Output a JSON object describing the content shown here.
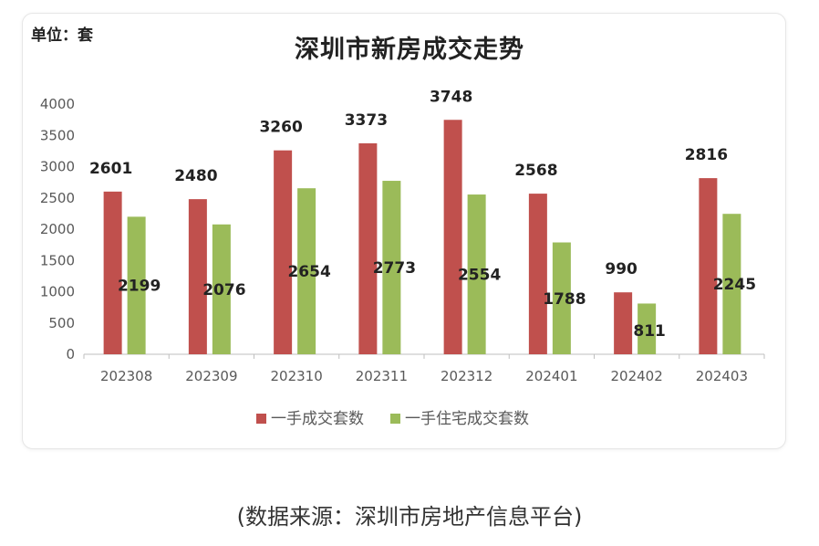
{
  "unit_label": "单位：套",
  "source_note": "(数据来源：深圳市房地产信息平台)",
  "colors": {
    "series1": "#c0504d",
    "series2": "#9bbb59",
    "axis": "#bfbfbf",
    "text": "#595959"
  },
  "chart_data": {
    "type": "bar",
    "title": "深圳市新房成交走势",
    "xlabel": "",
    "ylabel": "",
    "categories": [
      "202308",
      "202309",
      "202310",
      "202311",
      "202312",
      "202401",
      "202402",
      "202403"
    ],
    "series": [
      {
        "name": "一手成交套数",
        "values": [
          2601,
          2480,
          3260,
          3373,
          3748,
          2568,
          990,
          2816
        ]
      },
      {
        "name": "一手住宅成交套数",
        "values": [
          2199,
          2076,
          2654,
          2773,
          2554,
          1788,
          811,
          2245
        ]
      }
    ],
    "ylim": [
      0,
      4000
    ],
    "yticks": [
      0,
      500,
      1000,
      1500,
      2000,
      2500,
      3000,
      3500,
      4000
    ],
    "grid": false,
    "legend": "bottom"
  }
}
